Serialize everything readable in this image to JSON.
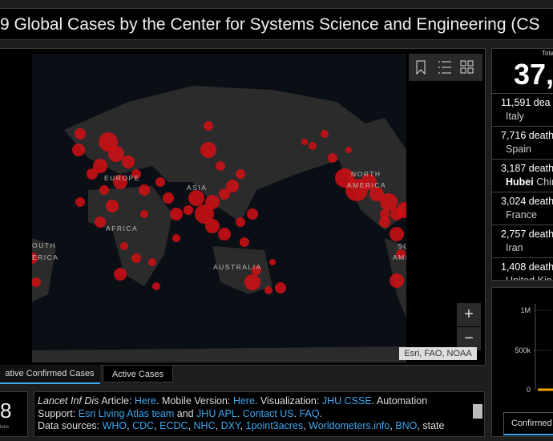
{
  "header": {
    "title": "9 Global Cases by the Center for Systems Science and Engineering (CS"
  },
  "map": {
    "labels": [
      "EUROPE",
      "ASIA",
      "AFRICA",
      "NORTH",
      "AMERICA",
      "OUTH",
      "ERICA",
      "AUSTRALIA",
      "SO",
      "AMI"
    ],
    "attribution": "Esri, FAO, NOAA",
    "zoom_in": "+",
    "zoom_out": "−"
  },
  "tabs": [
    "ative Confirmed Cases",
    "Active Cases"
  ],
  "left_box": {
    "value": "8",
    "caption": "ions"
  },
  "info": {
    "lines": [
      [
        {
          "text": "Lancet Inf Dis",
          "italic": true
        },
        {
          "text": " Article: "
        },
        {
          "text": "Here",
          "link": true
        },
        {
          "text": ". Mobile Version: "
        },
        {
          "text": "Here",
          "link": true
        },
        {
          "text": ". Visualization: "
        },
        {
          "text": "JHU CSSE",
          "link": true
        },
        {
          "text": ". Automation"
        }
      ],
      [
        {
          "text": "Support: "
        },
        {
          "text": "Esri Living Atlas team",
          "link": true
        },
        {
          "text": " and "
        },
        {
          "text": "JHU APL",
          "link": true
        },
        {
          "text": ". "
        },
        {
          "text": "Contact US",
          "link": true
        },
        {
          "text": ". "
        },
        {
          "text": "FAQ",
          "link": true
        },
        {
          "text": "."
        }
      ],
      [
        {
          "text": "Data sources: "
        },
        {
          "text": "WHO",
          "link": true
        },
        {
          "text": ", "
        },
        {
          "text": "CDC",
          "link": true
        },
        {
          "text": ", "
        },
        {
          "text": "ECDC",
          "link": true
        },
        {
          "text": ", "
        },
        {
          "text": "NHC",
          "link": true
        },
        {
          "text": ", "
        },
        {
          "text": "DXY",
          "link": true
        },
        {
          "text": ", "
        },
        {
          "text": "1point3acres",
          "link": true
        },
        {
          "text": ", "
        },
        {
          "text": "Worldometers.info",
          "link": true
        },
        {
          "text": ", "
        },
        {
          "text": "BNO",
          "link": true
        },
        {
          "text": ", state"
        }
      ]
    ]
  },
  "deaths": {
    "header": "Tota",
    "total": "37,",
    "items": [
      {
        "count": "11,591 dea",
        "place": "Italy"
      },
      {
        "count": "7,716 death",
        "place": "Spain"
      },
      {
        "count": "3,187 death",
        "place_bold": "Hubei",
        "place": " Chin"
      },
      {
        "count": "3,024 death",
        "place": "France"
      },
      {
        "count": "2,757 death",
        "place": "Iran"
      },
      {
        "count": "1,408 death",
        "place": "United Kin"
      }
    ]
  },
  "mini_chart": {
    "yticks": [
      "1M",
      "500k",
      "0"
    ],
    "tab": "Confirmed"
  }
}
